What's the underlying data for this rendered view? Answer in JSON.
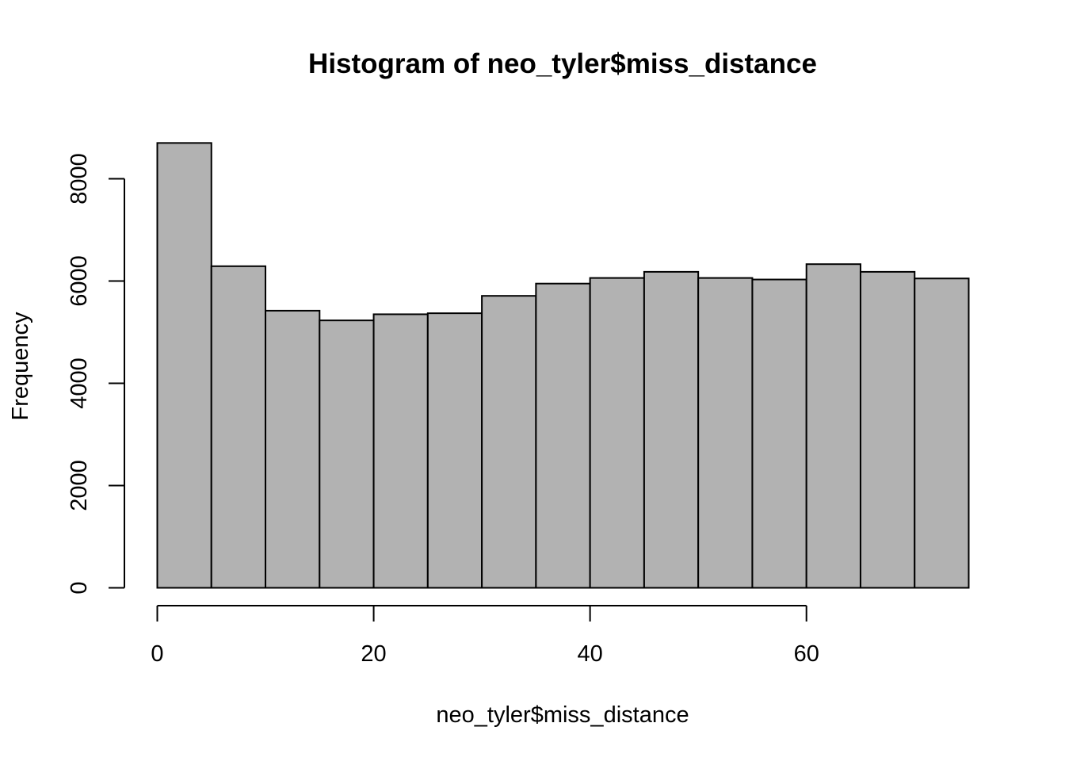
{
  "chart_data": {
    "type": "bar",
    "title": "Histogram of neo_tyler$miss_distance",
    "xlabel": "neo_tyler$miss_distance",
    "ylabel": "Frequency",
    "bin_edges": [
      0,
      5,
      10,
      15,
      20,
      25,
      30,
      35,
      40,
      45,
      50,
      55,
      60,
      65,
      70,
      75
    ],
    "values": [
      8700,
      6290,
      5420,
      5230,
      5350,
      5370,
      5710,
      5950,
      6060,
      6180,
      6060,
      6030,
      6330,
      6180,
      6050
    ],
    "xlim": [
      0,
      75
    ],
    "ylim": [
      0,
      8700
    ],
    "x_ticks": [
      0,
      20,
      40,
      60
    ],
    "x_tick_labels": [
      "0",
      "20",
      "40",
      "60"
    ],
    "y_ticks": [
      0,
      2000,
      4000,
      6000,
      8000
    ],
    "y_tick_labels": [
      "0",
      "2000",
      "4000",
      "6000",
      "8000"
    ],
    "grid": false,
    "bar_fill": "#b2b2b2",
    "bar_stroke": "#000000"
  }
}
